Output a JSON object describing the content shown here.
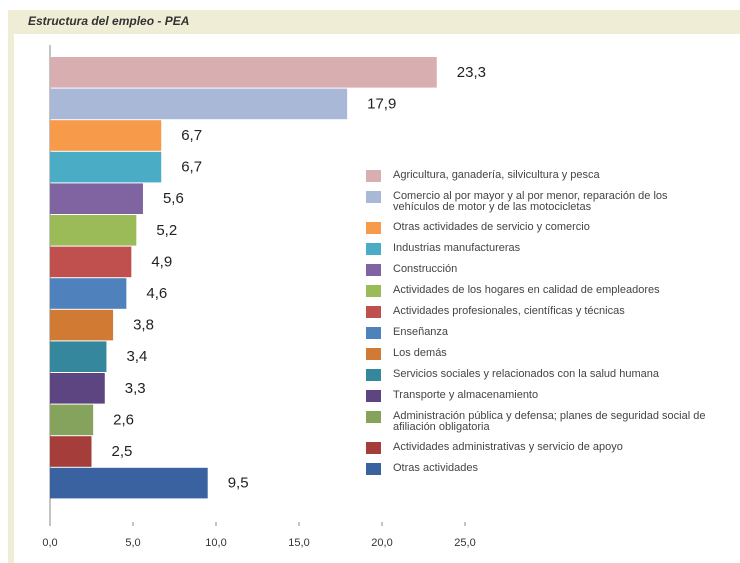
{
  "chart_data": {
    "type": "hbar",
    "title": "Estructura del empleo - PEA",
    "categories": [
      "Agricultura, ganadería, silvicultura y pesca",
      "Comercio al por mayor y al por menor, reparación de los vehículos de motor y de las motocicletas",
      "Otras actividades de servicio y comercio",
      "Industrias manufactureras",
      "Construcción",
      "Actividades de los hogares en calidad de empleadores",
      "Actividades profesionales, científicas y técnicas",
      "Enseñanza",
      "Los demás",
      "Servicios sociales y relacionados con la salud humana",
      "Transporte y almacenamiento",
      "Administración pública y defensa; planes de seguridad social de afiliación obligatoria",
      "Actividades administrativas y servicio de apoyo",
      "Otras actividades"
    ],
    "values": [
      23.3,
      17.9,
      6.7,
      6.7,
      5.6,
      5.2,
      4.9,
      4.6,
      3.8,
      3.4,
      3.3,
      2.6,
      2.5,
      9.5
    ],
    "value_labels": [
      "23,3",
      "17,9",
      "6,7",
      "6,7",
      "5,6",
      "5,2",
      "4,9",
      "4,6",
      "3,8",
      "3,4",
      "3,3",
      "2,6",
      "2,5",
      "9,5"
    ],
    "colors": [
      "#d9aeb0",
      "#a9b8d6",
      "#f79a4a",
      "#4bacc6",
      "#8064a2",
      "#9bbb59",
      "#c0504d",
      "#4f81bd",
      "#d07a33",
      "#34879c",
      "#5c4580",
      "#86a35d",
      "#a53d3b",
      "#3a62a0"
    ],
    "xlim": [
      0,
      25
    ],
    "xticks": [
      {
        "value": 0,
        "label": "0,0"
      },
      {
        "value": 5,
        "label": "5,0"
      },
      {
        "value": 10,
        "label": "10,0"
      },
      {
        "value": 15,
        "label": "15,0"
      },
      {
        "value": 20,
        "label": "20,0"
      },
      {
        "value": 25,
        "label": "25,0"
      }
    ]
  }
}
